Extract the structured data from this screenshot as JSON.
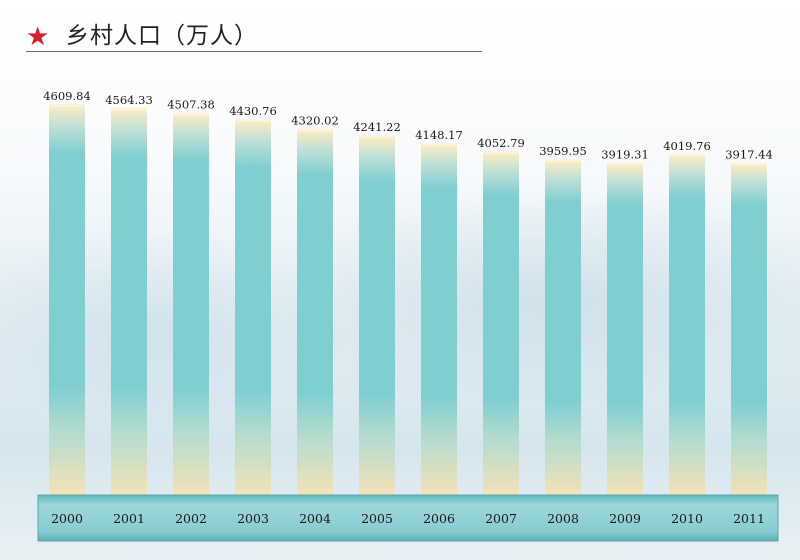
{
  "title": {
    "text": "乡村人口（万人）",
    "star_icon": "star-icon",
    "star_color": "#d9202a"
  },
  "colors": {
    "bar_main": "#7fcfd0",
    "bar_top": "#f5e7b8",
    "bar_bottom": "#f3e2b6",
    "axis_band": "#8ccfd2"
  },
  "chart_data": {
    "type": "bar",
    "title": "乡村人口（万人）",
    "xlabel": "",
    "ylabel": "",
    "categories": [
      "2000",
      "2001",
      "2002",
      "2003",
      "2004",
      "2005",
      "2006",
      "2007",
      "2008",
      "2009",
      "2010",
      "2011"
    ],
    "values": [
      4609.84,
      4564.33,
      4507.38,
      4430.76,
      4320.02,
      4241.22,
      4148.17,
      4052.79,
      3959.95,
      3919.31,
      4019.76,
      3917.44
    ],
    "value_labels": [
      "4609.84",
      "4564.33",
      "4507.38",
      "4430.76",
      "4320.02",
      "4241.22",
      "4148.17",
      "4052.79",
      "3959.95",
      "3919.31",
      "4019.76",
      "3917.44"
    ],
    "ylim": [
      0,
      4700
    ],
    "grid": false,
    "legend": "none"
  }
}
